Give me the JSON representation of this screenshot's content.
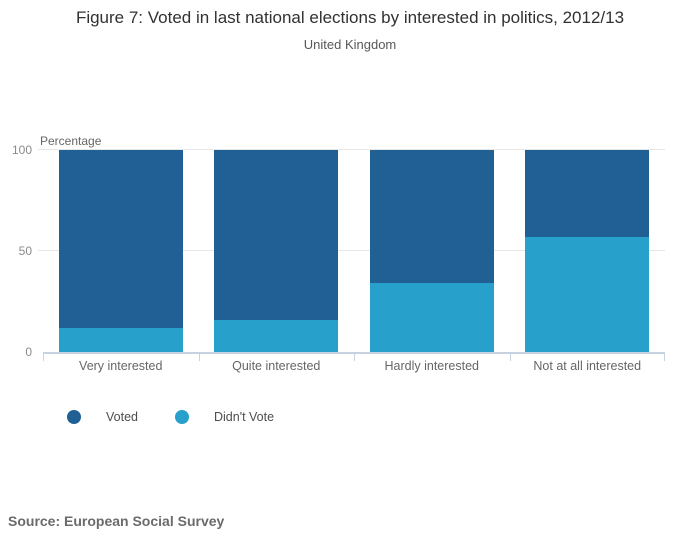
{
  "header": {
    "title": "Figure 7: Voted in last national elections by interested in politics, 2012/13",
    "subtitle": "United Kingdom"
  },
  "chart_data": {
    "type": "bar",
    "stacked": true,
    "title": "Figure 7: Voted in last national elections by interested in politics, 2012/13",
    "subtitle": "United Kingdom",
    "categories": [
      "Very interested",
      "Quite interested",
      "Hardly interested",
      "Not at all interested"
    ],
    "series": [
      {
        "name": "Voted",
        "color": "#206095",
        "values": [
          88,
          84,
          66,
          43
        ]
      },
      {
        "name": "Didn't Vote",
        "color": "#27a0cc",
        "values": [
          12,
          16,
          34,
          57
        ]
      }
    ],
    "ylabel": "Percentage",
    "xlabel": "",
    "ylim": [
      0,
      100
    ],
    "yticks": [
      0,
      50,
      100
    ],
    "grid": "horizontal",
    "gridline_color": "#e6e6e6",
    "axis_color": "#c6d2e0",
    "legend_position": "bottom-left"
  },
  "footer": {
    "source": "Source: European Social Survey"
  }
}
